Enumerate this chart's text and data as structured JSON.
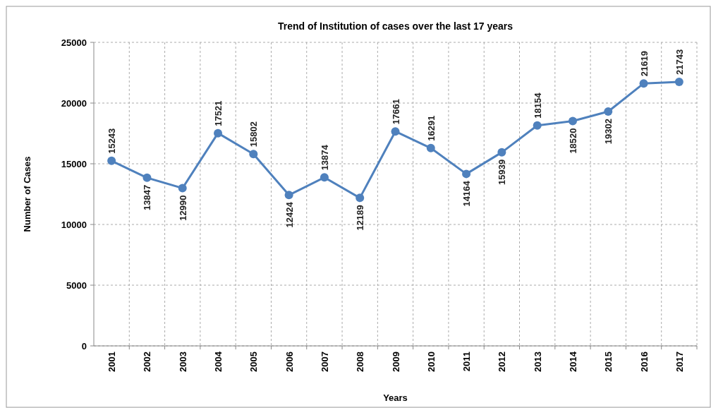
{
  "chart_data": {
    "type": "line",
    "title": "Trend of Institution of cases over the last 17 years",
    "xlabel": "Years",
    "ylabel": "Number of Cases",
    "categories": [
      "2001",
      "2002",
      "2003",
      "2004",
      "2005",
      "2006",
      "2007",
      "2008",
      "2009",
      "2010",
      "2011",
      "2012",
      "2013",
      "2014",
      "2015",
      "2016",
      "2017"
    ],
    "series": [
      {
        "color": "#4f81bd",
        "values": [
          15243,
          13847,
          12990,
          17521,
          15802,
          12424,
          13874,
          12189,
          17661,
          16291,
          14164,
          15939,
          18154,
          18520,
          19302,
          21619,
          21743
        ]
      }
    ],
    "ylim": [
      0,
      25000
    ],
    "yticks": [
      0,
      5000,
      10000,
      15000,
      20000,
      25000
    ],
    "grid": true,
    "marker": "circle",
    "line_style": "solid",
    "data_labels": true
  }
}
